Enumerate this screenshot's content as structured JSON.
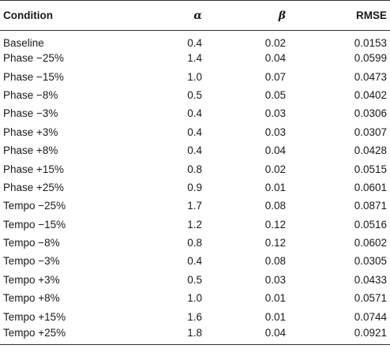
{
  "table": {
    "headers": [
      "Condition",
      "α",
      "β",
      "RMSE"
    ],
    "rows": [
      [
        "Baseline",
        "0.4",
        "0.02",
        "0.0153"
      ],
      [
        "Phase −25%",
        "1.4",
        "0.04",
        "0.0599"
      ],
      [
        "Phase −15%",
        "1.0",
        "0.07",
        "0.0473"
      ],
      [
        "Phase −8%",
        "0.5",
        "0.05",
        "0.0402"
      ],
      [
        "Phase −3%",
        "0.4",
        "0.03",
        "0.0306"
      ],
      [
        "Phase +3%",
        "0.4",
        "0.03",
        "0.0307"
      ],
      [
        "Phase +8%",
        "0.4",
        "0.04",
        "0.0428"
      ],
      [
        "Phase +15%",
        "0.8",
        "0.02",
        "0.0515"
      ],
      [
        "Phase +25%",
        "0.9",
        "0.01",
        "0.0601"
      ],
      [
        "Tempo −25%",
        "1.7",
        "0.08",
        "0.0871"
      ],
      [
        "Tempo −15%",
        "1.2",
        "0.12",
        "0.0516"
      ],
      [
        "Tempo −8%",
        "0.8",
        "0.12",
        "0.0602"
      ],
      [
        "Tempo −3%",
        "0.4",
        "0.08",
        "0.0305"
      ],
      [
        "Tempo +3%",
        "0.5",
        "0.03",
        "0.0433"
      ],
      [
        "Tempo +8%",
        "1.0",
        "0.01",
        "0.0571"
      ],
      [
        "Tempo +15%",
        "1.6",
        "0.01",
        "0.0744"
      ],
      [
        "Tempo +25%",
        "1.8",
        "0.04",
        "0.0921"
      ]
    ]
  }
}
